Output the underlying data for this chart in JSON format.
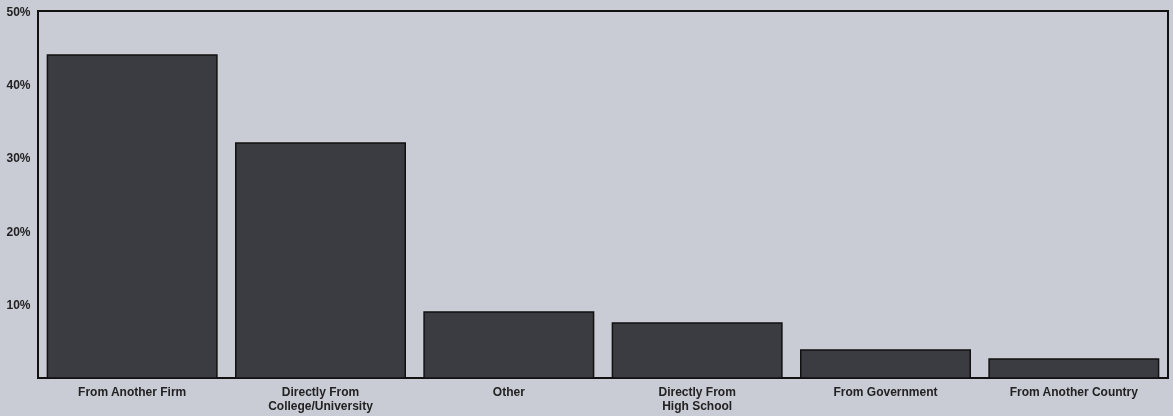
{
  "chart_data": {
    "type": "bar",
    "categories": [
      "From Another Firm",
      "Directly From\nCollege/University",
      "Other",
      "Directly From\nHigh School",
      "From Government",
      "From Another Country"
    ],
    "values": [
      44,
      32,
      9,
      7.5,
      3.8,
      2.6
    ],
    "color": "#3b3b42",
    "ylim": [
      0,
      50
    ],
    "yticks": [
      {
        "value": 10,
        "label": "10%"
      },
      {
        "value": 20,
        "label": "20%"
      },
      {
        "value": 30,
        "label": "30%"
      },
      {
        "value": 40,
        "label": "40%"
      },
      {
        "value": 50,
        "label": "50%"
      }
    ],
    "grid": false
  }
}
